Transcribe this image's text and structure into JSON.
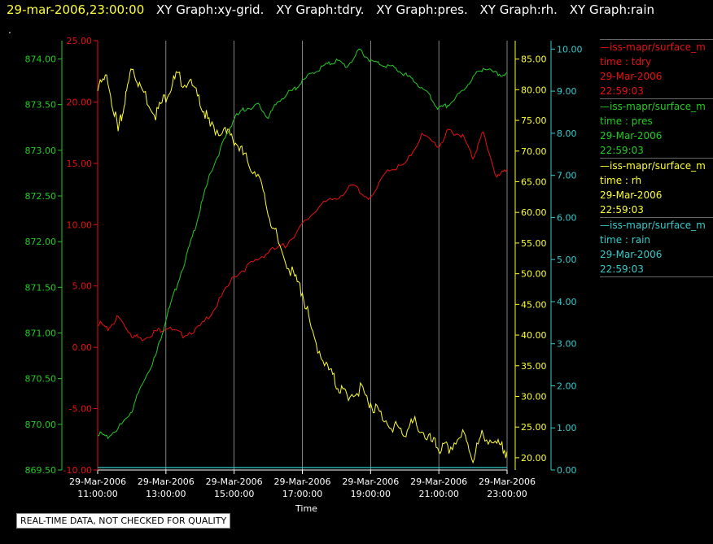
{
  "header": {
    "timestamp": "29-mar-2006,23:00:00",
    "titles": [
      "XY Graph:xy-grid.",
      "XY Graph:tdry.",
      "XY Graph:pres.",
      "XY Graph:rh.",
      "XY Graph:rain"
    ]
  },
  "dot_mark": ".",
  "note": "REAL-TIME DATA, NOT CHECKED FOR QUALITY",
  "colors": {
    "tdry": "#e81010",
    "pres": "#22cc22",
    "rh": "#ffff30",
    "rain": "#33cccc",
    "grid": "#bbbbbb"
  },
  "chart_data": {
    "type": "line",
    "xlabel": "Time",
    "x_ticks": [
      {
        "date": "29-Mar-2006",
        "time": "11:00:00"
      },
      {
        "date": "29-Mar-2006",
        "time": "13:00:00"
      },
      {
        "date": "29-Mar-2006",
        "time": "15:00:00"
      },
      {
        "date": "29-Mar-2006",
        "time": "17:00:00"
      },
      {
        "date": "29-Mar-2006",
        "time": "19:00:00"
      },
      {
        "date": "29-Mar-2006",
        "time": "21:00:00"
      },
      {
        "date": "29-Mar-2006",
        "time": "23:00:00"
      }
    ],
    "xlim_hours": [
      11,
      23
    ],
    "grid": "vertical",
    "axes": {
      "pres": {
        "range": [
          869.5,
          874.2
        ],
        "ticks": [
          "869.50",
          "870.00",
          "870.50",
          "871.00",
          "871.50",
          "872.00",
          "872.50",
          "873.00",
          "873.50",
          "874.00"
        ],
        "values": [
          869.5,
          870,
          870.5,
          871,
          871.5,
          872,
          872.5,
          873,
          873.5,
          874
        ]
      },
      "tdry": {
        "range": [
          -10,
          25
        ],
        "ticks": [
          "-10.00",
          "-5.00",
          "0.00",
          "5.00",
          "10.00",
          "15.00",
          "20.00",
          "25.00"
        ],
        "values": [
          -10,
          -5,
          0,
          5,
          10,
          15,
          20,
          25
        ]
      },
      "rh": {
        "range": [
          18,
          88
        ],
        "ticks": [
          "20.00",
          "25.00",
          "30.00",
          "35.00",
          "40.00",
          "45.00",
          "50.00",
          "55.00",
          "60.00",
          "65.00",
          "70.00",
          "75.00",
          "80.00",
          "85.00"
        ],
        "values": [
          20,
          25,
          30,
          35,
          40,
          45,
          50,
          55,
          60,
          65,
          70,
          75,
          80,
          85
        ]
      },
      "rain": {
        "range": [
          0,
          10.2
        ],
        "ticks": [
          "0.00",
          "1.00",
          "2.00",
          "3.00",
          "4.00",
          "5.00",
          "6.00",
          "7.00",
          "8.00",
          "9.00",
          "10.00"
        ],
        "values": [
          0,
          1,
          2,
          3,
          4,
          5,
          6,
          7,
          8,
          9,
          10
        ]
      }
    },
    "series": [
      {
        "key": "tdry",
        "hours": [
          11,
          11.3,
          11.6,
          12,
          12.3,
          12.7,
          13,
          13.5,
          14,
          14.5,
          15,
          15.5,
          16,
          16.5,
          17,
          17.5,
          18,
          18.5,
          19,
          19.5,
          20,
          20.5,
          21,
          21.3,
          21.7,
          22,
          22.3,
          22.7,
          23
        ],
        "values": [
          2,
          1.5,
          2.5,
          1,
          0.7,
          1.3,
          1.6,
          1,
          1.6,
          3.5,
          5.8,
          6.8,
          7.8,
          8.3,
          10,
          11.5,
          12.2,
          13.2,
          12,
          14.5,
          14.8,
          17.3,
          16.4,
          17.7,
          17.2,
          15.5,
          17.5,
          13.8,
          14.5
        ]
      },
      {
        "key": "pres",
        "hours": [
          11,
          11.3,
          11.7,
          12,
          12.3,
          12.7,
          13,
          13.3,
          13.7,
          14,
          14.3,
          14.7,
          15,
          15.3,
          15.7,
          16,
          16.3,
          16.7,
          17,
          17.3,
          17.7,
          18,
          18.3,
          18.7,
          19,
          19.3,
          19.7,
          20,
          20.3,
          20.7,
          21,
          21.3,
          21.7,
          22,
          22.3,
          22.7,
          23
        ],
        "values": [
          869.9,
          869.86,
          870.0,
          870.15,
          870.45,
          870.75,
          871.15,
          871.5,
          871.95,
          872.35,
          872.75,
          873.1,
          873.35,
          873.45,
          873.5,
          873.35,
          873.55,
          873.65,
          873.75,
          873.85,
          873.93,
          873.98,
          873.92,
          874.1,
          873.97,
          873.95,
          873.9,
          873.83,
          873.75,
          873.6,
          873.45,
          873.5,
          873.65,
          873.8,
          873.9,
          873.83,
          873.85
        ]
      },
      {
        "key": "rh",
        "hours": [
          11,
          11.3,
          11.6,
          11.8,
          12,
          12.3,
          12.7,
          13,
          13.3,
          13.7,
          14,
          14.3,
          14.7,
          15,
          15.3,
          15.7,
          16,
          16.3,
          16.7,
          17,
          17.3,
          17.7,
          18,
          18.3,
          18.7,
          19,
          19.3,
          19.7,
          20,
          20.3,
          20.7,
          21,
          21.3,
          21.7,
          22,
          22.3,
          22.7,
          23
        ],
        "values": [
          80,
          82,
          73,
          78,
          84,
          80,
          76,
          79,
          82,
          81,
          78,
          74,
          73,
          72,
          69,
          66,
          60,
          55,
          50,
          47,
          40,
          35,
          32,
          30,
          31,
          29,
          27,
          25,
          24,
          26,
          23,
          21.5,
          21.5,
          24,
          20,
          24,
          22,
          21
        ]
      },
      {
        "key": "rain",
        "hours": [
          11,
          23
        ],
        "values": [
          0,
          0
        ]
      }
    ],
    "legend": [
      {
        "src": "—iss-mapr/surface_m",
        "var": "time : tdry",
        "date": "29-Mar-2006",
        "time": "22:59:03",
        "key": "tdry"
      },
      {
        "src": "—iss-mapr/surface_m",
        "var": "time : pres",
        "date": "29-Mar-2006",
        "time": "22:59:03",
        "key": "pres"
      },
      {
        "src": "—iss-mapr/surface_m",
        "var": "time : rh",
        "date": "29-Mar-2006",
        "time": "22:59:03",
        "key": "rh"
      },
      {
        "src": "—iss-mapr/surface_m",
        "var": "time : rain",
        "date": "29-Mar-2006",
        "time": "22:59:03",
        "key": "rain"
      }
    ]
  }
}
